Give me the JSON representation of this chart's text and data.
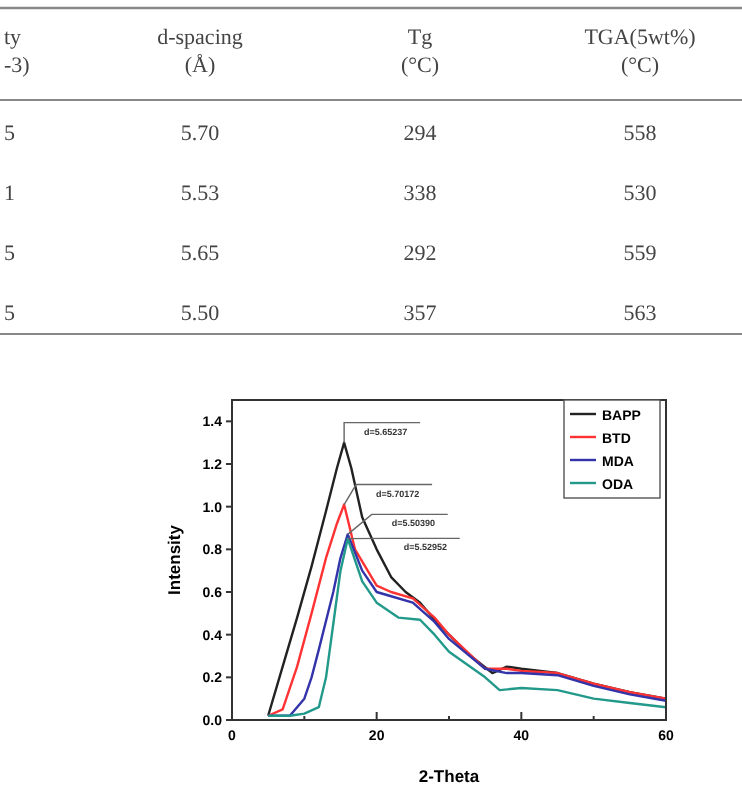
{
  "chart_data": [
    {
      "type": "other",
      "categories": [
        "ty\n-3)",
        "d-spacing\n(Å)",
        "Tg\n(°C)",
        "TGA(5wt%)\n(°C)"
      ],
      "cells": [
        [
          "5",
          "5.70",
          "294",
          "558"
        ],
        [
          "1",
          "5.53",
          "338",
          "530"
        ],
        [
          "5",
          "5.65",
          "292",
          "559"
        ],
        [
          "5",
          "5.50",
          "357",
          "563"
        ]
      ]
    },
    {
      "type": "line",
      "xlabel": "2-Theta",
      "ylabel": "Intensity",
      "xlim": [
        0,
        60
      ],
      "xticks": [
        0,
        20,
        40,
        60
      ],
      "ylim": [
        0,
        1.5
      ],
      "yticks": [
        {
          "value": 0,
          "label": "0.0"
        },
        0.2,
        0.4,
        0.6,
        0.8,
        {
          "value": 1,
          "label": "1.0"
        },
        1.2,
        1.4
      ],
      "legend": "top right",
      "grid": false,
      "series": [
        {
          "name": "BAPP",
          "color": "#222222",
          "x": [
            5,
            7,
            9,
            11,
            13,
            14.5,
            15.5,
            16.5,
            18,
            20,
            22,
            24,
            26,
            28,
            30,
            33,
            36,
            38,
            40,
            45,
            50,
            55,
            60
          ],
          "values": [
            0.02,
            0.25,
            0.48,
            0.72,
            0.98,
            1.18,
            1.3,
            1.18,
            0.95,
            0.8,
            0.67,
            0.6,
            0.55,
            0.47,
            0.4,
            0.3,
            0.22,
            0.25,
            0.24,
            0.22,
            0.17,
            0.13,
            0.1
          ]
        },
        {
          "name": "BTD",
          "color": "#ff3333",
          "x": [
            5,
            7,
            9,
            11,
            13,
            14.5,
            15.5,
            17,
            20,
            22,
            25,
            28,
            30,
            35,
            38,
            40,
            45,
            50,
            55,
            60
          ],
          "values": [
            0.02,
            0.05,
            0.25,
            0.5,
            0.76,
            0.92,
            1.01,
            0.8,
            0.63,
            0.6,
            0.57,
            0.48,
            0.4,
            0.24,
            0.24,
            0.23,
            0.22,
            0.17,
            0.13,
            0.1
          ]
        },
        {
          "name": "MDA",
          "color": "#3333aa",
          "x": [
            5,
            8,
            10,
            11,
            12,
            14,
            15,
            16,
            18,
            20,
            22,
            25,
            28,
            30,
            35,
            38,
            40,
            45,
            50,
            55,
            60
          ],
          "values": [
            0.02,
            0.02,
            0.1,
            0.2,
            0.33,
            0.6,
            0.76,
            0.87,
            0.7,
            0.6,
            0.58,
            0.55,
            0.46,
            0.38,
            0.24,
            0.22,
            0.22,
            0.21,
            0.16,
            0.12,
            0.09
          ]
        },
        {
          "name": "ODA",
          "color": "#22998a",
          "x": [
            5,
            8,
            10,
            12,
            13,
            14,
            15,
            16,
            17,
            18,
            20,
            23,
            26,
            28,
            30,
            35,
            37,
            40,
            45,
            50,
            55,
            60
          ],
          "values": [
            0.02,
            0.02,
            0.03,
            0.06,
            0.2,
            0.45,
            0.7,
            0.85,
            0.75,
            0.65,
            0.55,
            0.48,
            0.47,
            0.4,
            0.32,
            0.2,
            0.14,
            0.15,
            0.14,
            0.1,
            0.08,
            0.06
          ]
        }
      ],
      "annotations": [
        "d=5.65237",
        "d=5.70172",
        "d=5.50390",
        "d=5.52952"
      ]
    }
  ]
}
